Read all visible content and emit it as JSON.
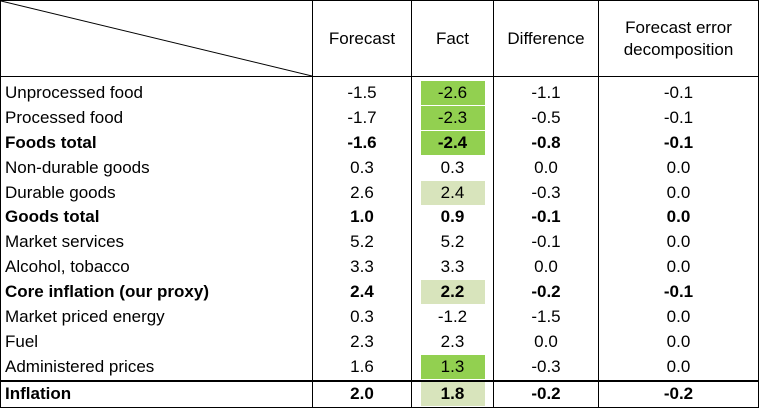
{
  "header": {
    "col_forecast": "Forecast",
    "col_fact": "Fact",
    "col_difference": "Difference",
    "col_decomp_line1": "Forecast error",
    "col_decomp_line2": "decomposition"
  },
  "rows": [
    {
      "label": "Unprocessed food",
      "forecast": "-1.5",
      "fact": "-2.6",
      "difference": "-1.1",
      "decomposition": "-0.1",
      "bold": false,
      "highlight": "strong"
    },
    {
      "label": "Processed food",
      "forecast": "-1.7",
      "fact": "-2.3",
      "difference": "-0.5",
      "decomposition": "-0.1",
      "bold": false,
      "highlight": "strong"
    },
    {
      "label": "Foods total",
      "forecast": "-1.6",
      "fact": "-2.4",
      "difference": "-0.8",
      "decomposition": "-0.1",
      "bold": true,
      "highlight": "strong"
    },
    {
      "label": "Non-durable goods",
      "forecast": "0.3",
      "fact": "0.3",
      "difference": "0.0",
      "decomposition": "0.0",
      "bold": false,
      "highlight": "none"
    },
    {
      "label": "Durable goods",
      "forecast": "2.6",
      "fact": "2.4",
      "difference": "-0.3",
      "decomposition": "0.0",
      "bold": false,
      "highlight": "light"
    },
    {
      "label": "Goods total",
      "forecast": "1.0",
      "fact": "0.9",
      "difference": "-0.1",
      "decomposition": "0.0",
      "bold": true,
      "highlight": "none"
    },
    {
      "label": "Market services",
      "forecast": "5.2",
      "fact": "5.2",
      "difference": "-0.1",
      "decomposition": "0.0",
      "bold": false,
      "highlight": "none"
    },
    {
      "label": "Alcohol, tobacco",
      "forecast": "3.3",
      "fact": "3.3",
      "difference": "0.0",
      "decomposition": "0.0",
      "bold": false,
      "highlight": "none"
    },
    {
      "label": "Core inflation (our proxy)",
      "forecast": "2.4",
      "fact": "2.2",
      "difference": "-0.2",
      "decomposition": "-0.1",
      "bold": true,
      "highlight": "light"
    },
    {
      "label": "Market priced energy",
      "forecast": "0.3",
      "fact": "-1.2",
      "difference": "-1.5",
      "decomposition": "0.0",
      "bold": false,
      "highlight": "none"
    },
    {
      "label": "Fuel",
      "forecast": "2.3",
      "fact": "2.3",
      "difference": "0.0",
      "decomposition": "0.0",
      "bold": false,
      "highlight": "none"
    },
    {
      "label": "Administered prices",
      "forecast": "1.6",
      "fact": "1.3",
      "difference": "-0.3",
      "decomposition": "0.0",
      "bold": false,
      "highlight": "strong"
    },
    {
      "label": "Inflation",
      "forecast": "2.0",
      "fact": "1.8",
      "difference": "-0.2",
      "decomposition": "-0.2",
      "bold": true,
      "highlight": "light"
    }
  ],
  "colors": {
    "highlight_strong": "#92d050",
    "highlight_light": "#d8e4bc"
  }
}
